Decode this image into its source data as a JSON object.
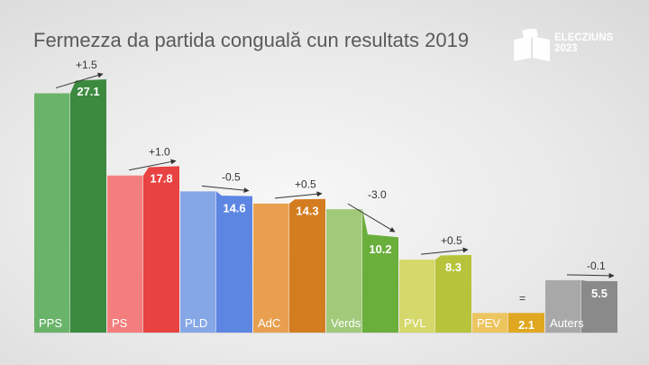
{
  "title": "Fermezza da partida conguală cun resultats 2019",
  "logo": {
    "line1": "ELECZIUNS",
    "line2": "2023"
  },
  "chart_data": {
    "type": "bar",
    "title": "Fermezza da partida conguală cun resultats 2019",
    "categories": [
      "PPS",
      "PS",
      "PLD",
      "AdC",
      "Verds",
      "PVL",
      "PEV",
      "Auters"
    ],
    "series": [
      {
        "values": [
          25.6,
          16.8,
          15.1,
          13.8,
          13.2,
          7.8,
          2.1,
          5.6
        ]
      },
      {
        "values": [
          27.1,
          17.8,
          14.6,
          14.3,
          10.2,
          8.3,
          2.1,
          5.5
        ]
      }
    ],
    "changes": [
      "+1.5",
      "+1.0",
      "-0.5",
      "+0.5",
      "-3.0",
      "+0.5",
      "=",
      "-0.1"
    ],
    "colors_2019": [
      "#6ab36a",
      "#f47e7e",
      "#86a7e6",
      "#e8a04f",
      "#a1c97a",
      "#d5d86a",
      "#edc55f",
      "#a8a8a8"
    ],
    "colors_2023": [
      "#3c8a3f",
      "#e84242",
      "#5d86e3",
      "#d47d20",
      "#6aae3b",
      "#b7c33a",
      "#e0a821",
      "#8a8a8a"
    ],
    "ylim": [
      0,
      27.1
    ],
    "grid": false,
    "legend": "none"
  }
}
